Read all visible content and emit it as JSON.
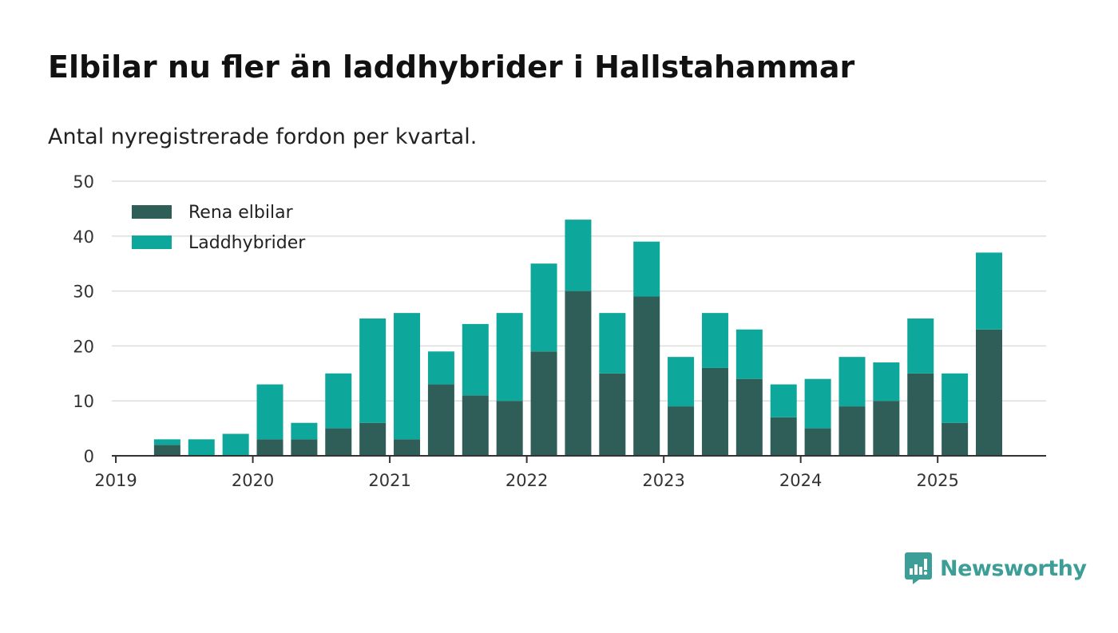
{
  "title": "Elbilar nu fler än laddhybrider i Hallstahammar",
  "subtitle": "Antal nyregistrerade fordon per kvartal.",
  "brand": {
    "name": "Newsworthy",
    "icon": "newsworthy-logo-icon",
    "color": "#3d9e98"
  },
  "colors": {
    "elbilar": "#2f5d58",
    "laddhybrider": "#0ea79b",
    "grid": "#dddddd",
    "axis": "#333333"
  },
  "chart_data": {
    "type": "bar",
    "stacked": true,
    "title": "Elbilar nu fler än laddhybrider i Hallstahammar",
    "subtitle": "Antal nyregistrerade fordon per kvartal.",
    "xlabel": "",
    "ylabel": "",
    "ylim": [
      0,
      50
    ],
    "yticks": [
      0,
      10,
      20,
      30,
      40,
      50
    ],
    "xtick_labels": [
      "2019",
      "2020",
      "2021",
      "2022",
      "2023",
      "2024",
      "2025"
    ],
    "grid": true,
    "legend_position": "top-left",
    "categories": [
      "2019 Q1",
      "2019 Q2",
      "2019 Q3",
      "2019 Q4",
      "2020 Q1",
      "2020 Q2",
      "2020 Q3",
      "2020 Q4",
      "2021 Q1",
      "2021 Q2",
      "2021 Q3",
      "2021 Q4",
      "2022 Q1",
      "2022 Q2",
      "2022 Q3",
      "2022 Q4",
      "2023 Q1",
      "2023 Q2",
      "2023 Q3",
      "2023 Q4",
      "2024 Q1",
      "2024 Q2",
      "2024 Q3",
      "2024 Q4",
      "2025 Q1",
      "2025 Q2"
    ],
    "series": [
      {
        "name": "Rena elbilar",
        "color": "#2f5d58",
        "values": [
          0,
          2,
          0,
          0,
          3,
          3,
          5,
          6,
          3,
          13,
          11,
          10,
          19,
          30,
          15,
          29,
          9,
          16,
          14,
          7,
          5,
          9,
          10,
          15,
          6,
          23
        ]
      },
      {
        "name": "Laddhybrider",
        "color": "#0ea79b",
        "values": [
          0,
          1,
          3,
          4,
          10,
          3,
          10,
          19,
          23,
          6,
          13,
          16,
          16,
          13,
          11,
          10,
          9,
          10,
          9,
          6,
          9,
          9,
          7,
          10,
          9,
          14
        ]
      }
    ]
  }
}
